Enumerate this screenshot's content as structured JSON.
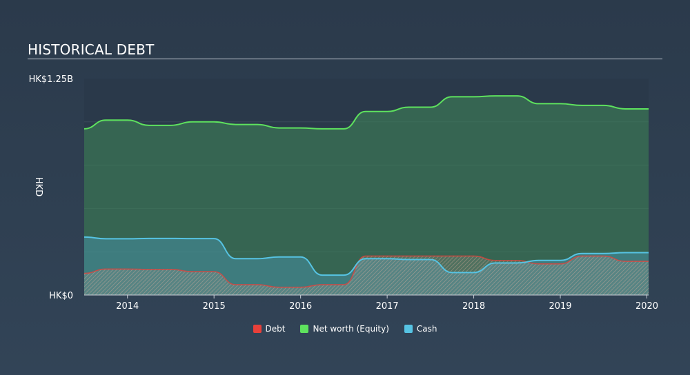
{
  "title": "HISTORICAL DEBT",
  "chart_data": {
    "type": "area",
    "currency_axis_label": "HKD",
    "ylim": [
      0,
      1.25
    ],
    "xlim": [
      2013.5,
      2020.02
    ],
    "y_ticks": [
      {
        "value": 1.25,
        "label": "HK$1.25B"
      },
      {
        "value": 0,
        "label": "HK$0"
      }
    ],
    "x_ticks": [
      {
        "value": 2014,
        "label": "2014"
      },
      {
        "value": 2015,
        "label": "2015"
      },
      {
        "value": 2016,
        "label": "2016"
      },
      {
        "value": 2017,
        "label": "2017"
      },
      {
        "value": 2018,
        "label": "2018"
      },
      {
        "value": 2019,
        "label": "2019"
      },
      {
        "value": 2020,
        "label": "2020"
      }
    ],
    "grid": "horizontal",
    "legend_position": "bottom-center",
    "series": [
      {
        "name": "Net worth (Equity)",
        "color": "#5ee25e",
        "points": [
          [
            2013.5,
            0.96
          ],
          [
            2013.75,
            1.01
          ],
          [
            2014.0,
            1.01
          ],
          [
            2014.25,
            0.98
          ],
          [
            2014.5,
            0.98
          ],
          [
            2014.75,
            1.0
          ],
          [
            2015.0,
            1.0
          ],
          [
            2015.25,
            0.985
          ],
          [
            2015.5,
            0.985
          ],
          [
            2015.75,
            0.965
          ],
          [
            2016.0,
            0.965
          ],
          [
            2016.25,
            0.96
          ],
          [
            2016.5,
            0.96
          ],
          [
            2016.75,
            1.06
          ],
          [
            2017.0,
            1.06
          ],
          [
            2017.25,
            1.085
          ],
          [
            2017.5,
            1.085
          ],
          [
            2017.75,
            1.145
          ],
          [
            2018.0,
            1.145
          ],
          [
            2018.25,
            1.15
          ],
          [
            2018.5,
            1.15
          ],
          [
            2018.75,
            1.105
          ],
          [
            2019.0,
            1.105
          ],
          [
            2019.25,
            1.095
          ],
          [
            2019.5,
            1.095
          ],
          [
            2019.75,
            1.075
          ],
          [
            2020.02,
            1.075
          ]
        ]
      },
      {
        "name": "Cash",
        "color": "#56c3e3",
        "points": [
          [
            2013.5,
            0.335
          ],
          [
            2013.75,
            0.325
          ],
          [
            2014.0,
            0.325
          ],
          [
            2014.25,
            0.327
          ],
          [
            2014.5,
            0.327
          ],
          [
            2014.75,
            0.326
          ],
          [
            2015.0,
            0.326
          ],
          [
            2015.25,
            0.21
          ],
          [
            2015.5,
            0.21
          ],
          [
            2015.75,
            0.22
          ],
          [
            2016.0,
            0.22
          ],
          [
            2016.25,
            0.115
          ],
          [
            2016.5,
            0.115
          ],
          [
            2016.75,
            0.21
          ],
          [
            2017.0,
            0.21
          ],
          [
            2017.25,
            0.205
          ],
          [
            2017.5,
            0.205
          ],
          [
            2017.75,
            0.13
          ],
          [
            2018.0,
            0.13
          ],
          [
            2018.25,
            0.185
          ],
          [
            2018.5,
            0.185
          ],
          [
            2018.75,
            0.2
          ],
          [
            2019.0,
            0.2
          ],
          [
            2019.25,
            0.24
          ],
          [
            2019.5,
            0.24
          ],
          [
            2019.75,
            0.245
          ],
          [
            2020.02,
            0.245
          ]
        ]
      },
      {
        "name": "Debt",
        "color": "#e8403a",
        "points": [
          [
            2013.5,
            0.125
          ],
          [
            2013.75,
            0.15
          ],
          [
            2014.0,
            0.15
          ],
          [
            2014.25,
            0.148
          ],
          [
            2014.5,
            0.148
          ],
          [
            2014.75,
            0.135
          ],
          [
            2015.0,
            0.135
          ],
          [
            2015.25,
            0.06
          ],
          [
            2015.5,
            0.06
          ],
          [
            2015.75,
            0.045
          ],
          [
            2016.0,
            0.045
          ],
          [
            2016.25,
            0.06
          ],
          [
            2016.5,
            0.06
          ],
          [
            2016.75,
            0.225
          ],
          [
            2017.0,
            0.225
          ],
          [
            2017.25,
            0.225
          ],
          [
            2017.5,
            0.225
          ],
          [
            2017.75,
            0.225
          ],
          [
            2018.0,
            0.225
          ],
          [
            2018.25,
            0.2
          ],
          [
            2018.5,
            0.2
          ],
          [
            2018.75,
            0.18
          ],
          [
            2019.0,
            0.18
          ],
          [
            2019.25,
            0.225
          ],
          [
            2019.5,
            0.225
          ],
          [
            2019.75,
            0.195
          ],
          [
            2020.02,
            0.195
          ]
        ]
      }
    ]
  }
}
